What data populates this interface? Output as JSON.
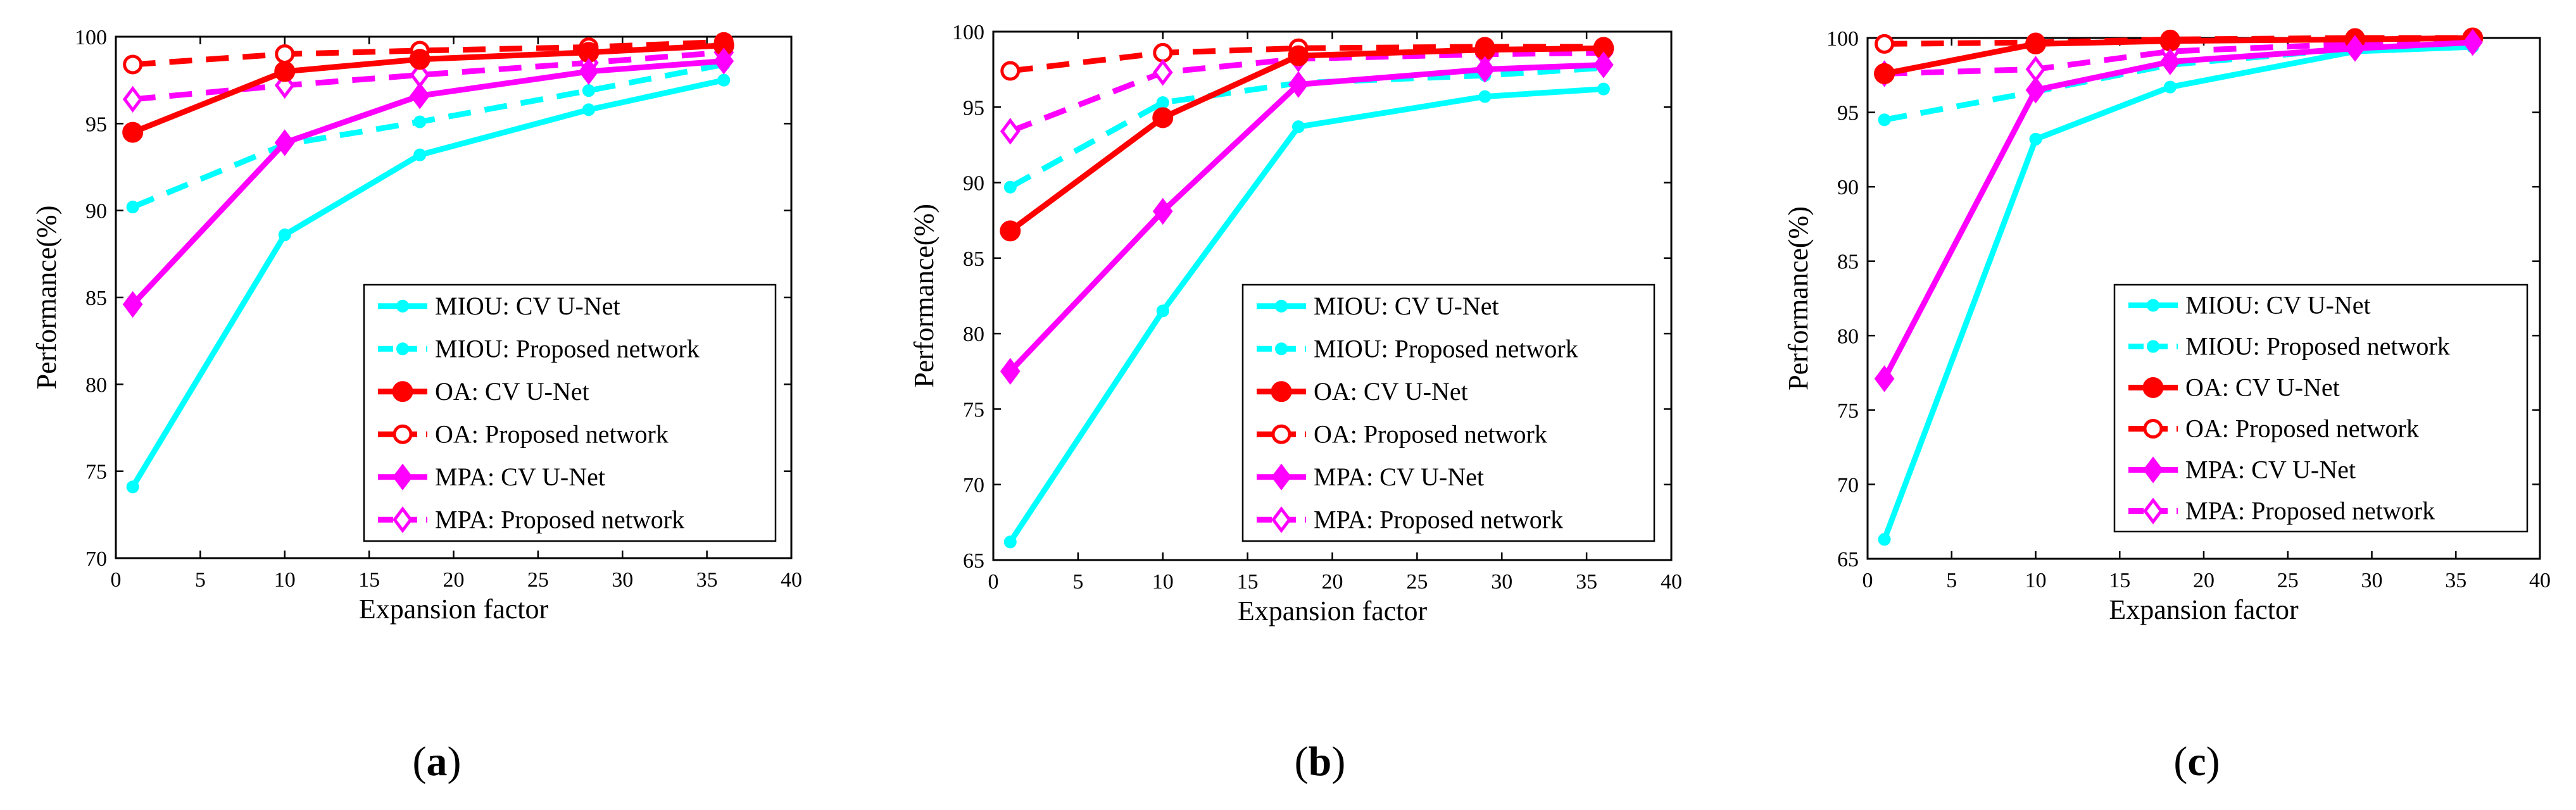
{
  "colors": {
    "miou": "#00FFFF",
    "oa": "#FF0000",
    "mpa": "#FF00FF",
    "axis": "#000000",
    "legend_border": "#000000"
  },
  "legend_labels": [
    "MIOU: CV U-Net",
    "MIOU: Proposed network",
    "OA: CV U-Net",
    "OA: Proposed network",
    "MPA: CV U-Net",
    "MPA: Proposed network"
  ],
  "chart_data": [
    {
      "type": "line",
      "panel_label": "(a)",
      "panel_letter": "a",
      "xlabel": "Expansion factor",
      "ylabel": "Performance(%)",
      "xlim": [
        0,
        40
      ],
      "ylim": [
        70,
        100
      ],
      "xticks": [
        0,
        5,
        10,
        15,
        20,
        25,
        30,
        35,
        40
      ],
      "yticks": [
        70,
        75,
        80,
        85,
        90,
        95,
        100
      ],
      "x": [
        1,
        10,
        18,
        28,
        36
      ],
      "series": [
        {
          "name": "MIOU: CV U-Net",
          "color_key": "miou",
          "style": "solid",
          "marker": "dot",
          "values": [
            74.1,
            88.6,
            93.2,
            95.8,
            97.5
          ]
        },
        {
          "name": "MIOU: Proposed network",
          "color_key": "miou",
          "style": "dashed",
          "marker": "dot",
          "values": [
            90.2,
            93.8,
            95.1,
            96.9,
            98.4
          ]
        },
        {
          "name": "OA: CV U-Net",
          "color_key": "oa",
          "style": "solid",
          "marker": "circle-filled",
          "values": [
            94.5,
            98.0,
            98.7,
            99.1,
            99.5
          ]
        },
        {
          "name": "OA: Proposed network",
          "color_key": "oa",
          "style": "dashed",
          "marker": "circle-open",
          "values": [
            98.4,
            99.0,
            99.2,
            99.4,
            99.7
          ]
        },
        {
          "name": "MPA: CV U-Net",
          "color_key": "mpa",
          "style": "solid",
          "marker": "diamond-filled",
          "values": [
            84.6,
            93.9,
            96.6,
            98.0,
            98.6
          ]
        },
        {
          "name": "MPA: Proposed network",
          "color_key": "mpa",
          "style": "dashed",
          "marker": "diamond-open",
          "values": [
            96.4,
            97.2,
            97.8,
            98.5,
            99.1
          ]
        }
      ]
    },
    {
      "type": "line",
      "panel_label": "(b)",
      "panel_letter": "b",
      "xlabel": "Expansion factor",
      "ylabel": "Performance(%)",
      "xlim": [
        0,
        40
      ],
      "ylim": [
        65,
        100
      ],
      "xticks": [
        0,
        5,
        10,
        15,
        20,
        25,
        30,
        35,
        40
      ],
      "yticks": [
        65,
        70,
        75,
        80,
        85,
        90,
        95,
        100
      ],
      "x": [
        1,
        10,
        18,
        29,
        36
      ],
      "series": [
        {
          "name": "MIOU: CV U-Net",
          "color_key": "miou",
          "style": "solid",
          "marker": "dot",
          "values": [
            66.2,
            81.5,
            93.7,
            95.7,
            96.2
          ]
        },
        {
          "name": "MIOU: Proposed network",
          "color_key": "miou",
          "style": "dashed",
          "marker": "dot",
          "values": [
            89.7,
            95.3,
            96.6,
            97.1,
            97.6
          ]
        },
        {
          "name": "OA: CV U-Net",
          "color_key": "oa",
          "style": "solid",
          "marker": "circle-filled",
          "values": [
            86.8,
            94.3,
            98.4,
            98.8,
            98.9
          ]
        },
        {
          "name": "OA: Proposed network",
          "color_key": "oa",
          "style": "dashed",
          "marker": "circle-open",
          "values": [
            97.4,
            98.6,
            98.9,
            99.0,
            99.0
          ]
        },
        {
          "name": "MPA: CV U-Net",
          "color_key": "mpa",
          "style": "solid",
          "marker": "diamond-filled",
          "values": [
            77.5,
            88.1,
            96.5,
            97.5,
            97.8
          ]
        },
        {
          "name": "MPA: Proposed network",
          "color_key": "mpa",
          "style": "dashed",
          "marker": "diamond-open",
          "values": [
            93.4,
            97.3,
            98.2,
            98.5,
            98.6
          ]
        }
      ]
    },
    {
      "type": "line",
      "panel_label": "(c)",
      "panel_letter": "c",
      "xlabel": "Expansion factor",
      "ylabel": "Performance(%)",
      "xlim": [
        0,
        40
      ],
      "ylim": [
        65,
        100
      ],
      "xticks": [
        0,
        5,
        10,
        15,
        20,
        25,
        30,
        35,
        40
      ],
      "yticks": [
        65,
        70,
        75,
        80,
        85,
        90,
        95,
        100
      ],
      "x": [
        1,
        10,
        18,
        29,
        36
      ],
      "series": [
        {
          "name": "MIOU: CV U-Net",
          "color_key": "miou",
          "style": "solid",
          "marker": "dot",
          "values": [
            66.3,
            93.2,
            96.7,
            99.1,
            99.4
          ]
        },
        {
          "name": "MIOU: Proposed network",
          "color_key": "miou",
          "style": "dashed",
          "marker": "dot",
          "values": [
            94.5,
            96.4,
            98.2,
            99.3,
            99.6
          ]
        },
        {
          "name": "OA: CV U-Net",
          "color_key": "oa",
          "style": "solid",
          "marker": "circle-filled",
          "values": [
            97.6,
            99.6,
            99.8,
            99.9,
            100.0
          ]
        },
        {
          "name": "OA: Proposed network",
          "color_key": "oa",
          "style": "dashed",
          "marker": "circle-open",
          "values": [
            99.6,
            99.7,
            99.9,
            100.0,
            100.0
          ]
        },
        {
          "name": "MPA: CV U-Net",
          "color_key": "mpa",
          "style": "solid",
          "marker": "diamond-filled",
          "values": [
            77.1,
            96.5,
            98.4,
            99.3,
            99.7
          ]
        },
        {
          "name": "MPA: Proposed network",
          "color_key": "mpa",
          "style": "dashed",
          "marker": "diamond-open",
          "values": [
            97.6,
            97.9,
            99.1,
            99.6,
            99.8
          ]
        }
      ]
    }
  ]
}
